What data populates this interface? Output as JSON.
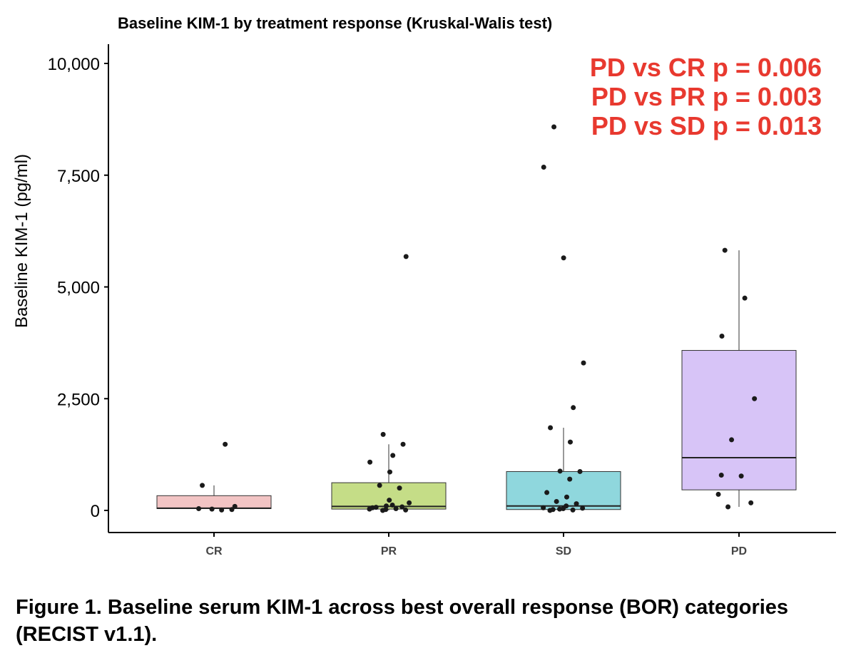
{
  "chart_data": {
    "type": "box",
    "title": "Baseline KIM-1 by treatment response (Kruskal-Walis test)",
    "ylabel": "Baseline KIM-1 (pg/ml)",
    "xlabel": "",
    "ylim": [
      -500,
      10500
    ],
    "yticks": [
      0,
      2500,
      5000,
      7500,
      10000
    ],
    "ytick_labels": [
      "0",
      "2,500",
      "5,000",
      "7,500",
      "10,000"
    ],
    "categories": [
      "CR",
      "PR",
      "SD",
      "PD"
    ],
    "grid": false,
    "boxes": [
      {
        "category": "CR",
        "q1": 40,
        "median": 50,
        "q3": 330,
        "whisker_low": 40,
        "whisker_high": 560,
        "color": "#f2c4c4"
      },
      {
        "category": "PR",
        "q1": 30,
        "median": 90,
        "q3": 620,
        "whisker_low": 0,
        "whisker_high": 1480,
        "color": "#c5dd87"
      },
      {
        "category": "SD",
        "q1": 20,
        "median": 100,
        "q3": 870,
        "whisker_low": 0,
        "whisker_high": 1850,
        "color": "#8fd7dd"
      },
      {
        "category": "PD",
        "q1": 460,
        "median": 1180,
        "q3": 3580,
        "whisker_low": 80,
        "whisker_high": 5820,
        "color": "#d7c4f7"
      }
    ],
    "points": [
      {
        "category": "CR",
        "values": [
          1480,
          560,
          90,
          30,
          20,
          10,
          40
        ]
      },
      {
        "category": "PR",
        "values": [
          5680,
          1700,
          1480,
          1230,
          1080,
          860,
          560,
          500,
          230,
          170,
          100,
          70,
          40,
          20,
          10,
          0,
          60,
          120,
          30,
          80
        ]
      },
      {
        "category": "SD",
        "values": [
          8580,
          7680,
          5650,
          3300,
          2300,
          1850,
          1530,
          880,
          870,
          700,
          400,
          300,
          200,
          150,
          100,
          60,
          40,
          20,
          10,
          0,
          50,
          30
        ]
      },
      {
        "category": "PD",
        "values": [
          5820,
          4750,
          3900,
          2500,
          1580,
          790,
          770,
          360,
          170,
          80
        ]
      }
    ],
    "annotations": [
      "PD vs CR p = 0.006",
      "PD vs PR p = 0.003",
      "PD vs SD p = 0.013"
    ],
    "annotation_color": "#e8392f",
    "point_color": "#1a1a1a"
  },
  "caption": "Figure 1. Baseline serum KIM-1 across best overall response (BOR) categories (RECIST v1.1)."
}
